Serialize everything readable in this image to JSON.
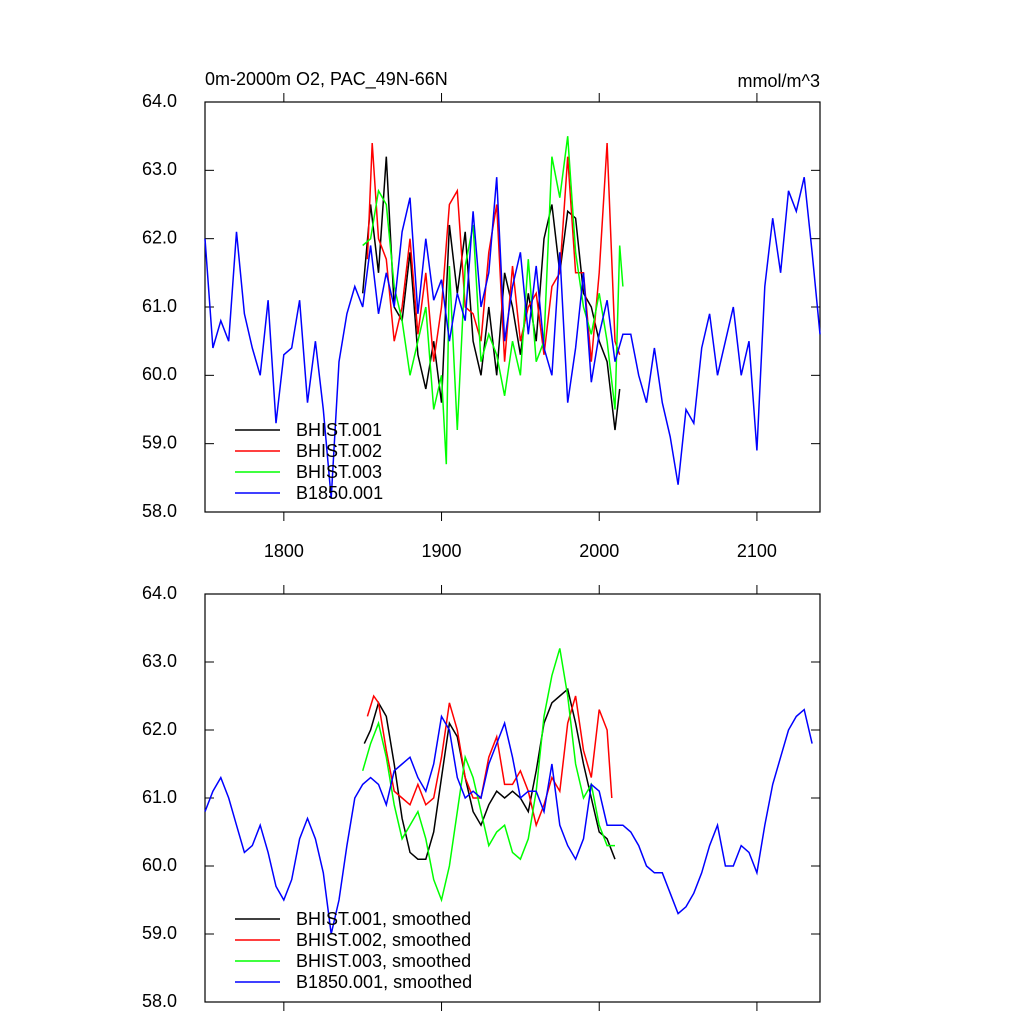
{
  "chart_data": [
    {
      "type": "line",
      "title": "0m-2000m O2, PAC_49N-66N",
      "units": "mmol/m^3",
      "xlim": [
        1750,
        2140
      ],
      "xticks": [
        1800,
        1900,
        2000,
        2100
      ],
      "ylim": [
        58,
        64
      ],
      "yticks": [
        {
          "value": 58,
          "label": "58.0"
        },
        {
          "value": 59,
          "label": "59.0"
        },
        {
          "value": 60,
          "label": "60.0"
        },
        {
          "value": 61,
          "label": "61.0"
        },
        {
          "value": 62,
          "label": "62.0"
        },
        {
          "value": 63,
          "label": "63.0"
        },
        {
          "value": 64,
          "label": "64.0"
        }
      ],
      "legend": "lower left",
      "series": [
        {
          "name": "BHIST.001",
          "color": "#000000",
          "x": [
            1850,
            1855,
            1860,
            1865,
            1870,
            1875,
            1880,
            1885,
            1890,
            1895,
            1900,
            1905,
            1910,
            1915,
            1920,
            1925,
            1930,
            1935,
            1940,
            1945,
            1950,
            1955,
            1960,
            1965,
            1970,
            1975,
            1980,
            1985,
            1990,
            1995,
            2000,
            2005,
            2010,
            2013
          ],
          "values": [
            61.2,
            62.5,
            61.5,
            63.2,
            61.0,
            60.8,
            61.8,
            60.3,
            59.8,
            60.5,
            59.6,
            62.2,
            61.2,
            62.1,
            60.5,
            60.0,
            61.0,
            60.0,
            61.5,
            61.0,
            60.3,
            61.2,
            60.5,
            62.0,
            62.5,
            61.5,
            62.4,
            62.3,
            61.2,
            61.0,
            60.5,
            60.2,
            59.2,
            59.8
          ]
        },
        {
          "name": "BHIST.002",
          "color": "#ff0000",
          "x": [
            1853,
            1856,
            1860,
            1865,
            1870,
            1875,
            1880,
            1885,
            1890,
            1895,
            1900,
            1905,
            1910,
            1915,
            1920,
            1925,
            1930,
            1935,
            1940,
            1945,
            1950,
            1955,
            1960,
            1965,
            1970,
            1975,
            1980,
            1985,
            1990,
            1995,
            2000,
            2005,
            2010,
            2013
          ],
          "values": [
            61.7,
            63.4,
            62.0,
            61.7,
            60.5,
            61.0,
            62.0,
            60.6,
            61.5,
            60.2,
            61.0,
            62.5,
            62.7,
            61.0,
            60.9,
            60.5,
            61.8,
            62.5,
            60.2,
            61.6,
            60.5,
            61.0,
            61.2,
            60.3,
            61.3,
            61.5,
            63.2,
            61.5,
            61.5,
            60.2,
            61.5,
            63.4,
            60.5,
            60.3
          ]
        },
        {
          "name": "BHIST.003",
          "color": "#00ff00",
          "x": [
            1850,
            1855,
            1860,
            1865,
            1870,
            1875,
            1880,
            1885,
            1890,
            1895,
            1900,
            1903,
            1905,
            1910,
            1915,
            1920,
            1925,
            1930,
            1935,
            1940,
            1945,
            1950,
            1955,
            1960,
            1965,
            1970,
            1975,
            1980,
            1985,
            1990,
            1995,
            2000,
            2005,
            2010,
            2013,
            2015
          ],
          "values": [
            61.9,
            62.0,
            62.7,
            62.5,
            61.3,
            60.8,
            60.0,
            60.5,
            61.0,
            59.5,
            60.0,
            58.7,
            61.6,
            59.2,
            61.6,
            62.2,
            60.2,
            60.6,
            60.3,
            59.7,
            60.5,
            60.0,
            61.7,
            60.2,
            60.5,
            63.2,
            62.6,
            63.5,
            61.8,
            61.0,
            60.6,
            61.2,
            60.5,
            59.5,
            61.9,
            61.3
          ]
        },
        {
          "name": "B1850.001",
          "color": "#0000ff",
          "x": [
            1750,
            1755,
            1760,
            1765,
            1770,
            1775,
            1780,
            1785,
            1790,
            1795,
            1800,
            1805,
            1810,
            1815,
            1820,
            1825,
            1830,
            1835,
            1840,
            1845,
            1850,
            1855,
            1860,
            1865,
            1870,
            1875,
            1880,
            1885,
            1890,
            1895,
            1900,
            1905,
            1910,
            1915,
            1920,
            1925,
            1930,
            1935,
            1940,
            1945,
            1950,
            1955,
            1960,
            1965,
            1970,
            1975,
            1980,
            1985,
            1990,
            1995,
            2000,
            2005,
            2010,
            2015,
            2020,
            2025,
            2030,
            2035,
            2040,
            2045,
            2050,
            2055,
            2060,
            2065,
            2070,
            2075,
            2080,
            2085,
            2090,
            2095,
            2100,
            2105,
            2110,
            2115,
            2120,
            2125,
            2130,
            2135,
            2140
          ],
          "values": [
            62.0,
            60.4,
            60.8,
            60.5,
            62.1,
            60.9,
            60.4,
            60.0,
            61.1,
            59.3,
            60.3,
            60.4,
            61.1,
            59.6,
            60.5,
            59.5,
            58.2,
            60.2,
            60.9,
            61.3,
            61.0,
            61.9,
            60.9,
            61.5,
            61.0,
            62.1,
            62.6,
            60.9,
            62.0,
            61.1,
            61.4,
            60.5,
            61.2,
            60.8,
            62.4,
            61.0,
            61.5,
            62.9,
            60.5,
            61.3,
            61.8,
            60.6,
            61.6,
            60.4,
            60.0,
            61.8,
            59.6,
            60.4,
            61.5,
            59.9,
            60.6,
            61.1,
            60.2,
            60.6,
            60.6,
            60.0,
            59.6,
            60.4,
            59.6,
            59.1,
            58.4,
            59.5,
            59.3,
            60.4,
            60.9,
            60.0,
            60.5,
            61.0,
            60.0,
            60.5,
            58.9,
            61.3,
            62.3,
            61.5,
            62.7,
            62.4,
            62.9,
            61.8,
            60.6
          ]
        }
      ]
    },
    {
      "type": "line",
      "xlim": [
        1750,
        2140
      ],
      "xticks": [
        1800,
        1900,
        2000,
        2100
      ],
      "ylim": [
        58,
        64
      ],
      "yticks": [
        {
          "value": 58,
          "label": "58.0"
        },
        {
          "value": 59,
          "label": "59.0"
        },
        {
          "value": 60,
          "label": "60.0"
        },
        {
          "value": 61,
          "label": "61.0"
        },
        {
          "value": 62,
          "label": "62.0"
        },
        {
          "value": 63,
          "label": "63.0"
        },
        {
          "value": 64,
          "label": "64.0"
        }
      ],
      "legend": "lower left",
      "series": [
        {
          "name": "BHIST.001, smoothed",
          "color": "#000000",
          "x": [
            1851,
            1855,
            1860,
            1865,
            1870,
            1875,
            1880,
            1885,
            1890,
            1895,
            1900,
            1905,
            1910,
            1915,
            1920,
            1925,
            1930,
            1935,
            1940,
            1945,
            1950,
            1955,
            1960,
            1965,
            1970,
            1975,
            1980,
            1985,
            1990,
            1995,
            2000,
            2005,
            2010
          ],
          "values": [
            61.8,
            62.0,
            62.4,
            62.2,
            61.5,
            60.7,
            60.2,
            60.1,
            60.1,
            60.5,
            61.3,
            62.1,
            61.9,
            61.3,
            60.8,
            60.6,
            60.9,
            61.1,
            61.0,
            61.1,
            61.0,
            60.8,
            61.4,
            62.1,
            62.4,
            62.5,
            62.6,
            62.1,
            61.5,
            61.0,
            60.5,
            60.4,
            60.1
          ]
        },
        {
          "name": "BHIST.002, smoothed",
          "color": "#ff0000",
          "x": [
            1853,
            1857,
            1860,
            1865,
            1870,
            1875,
            1880,
            1885,
            1890,
            1895,
            1900,
            1905,
            1910,
            1915,
            1920,
            1925,
            1930,
            1935,
            1940,
            1945,
            1950,
            1955,
            1960,
            1965,
            1970,
            1975,
            1980,
            1985,
            1990,
            1995,
            2000,
            2005,
            2008
          ],
          "values": [
            62.2,
            62.5,
            62.4,
            61.7,
            61.1,
            61.0,
            60.9,
            61.2,
            60.9,
            61.0,
            61.6,
            62.4,
            62.0,
            61.3,
            61.0,
            61.0,
            61.6,
            61.9,
            61.2,
            61.2,
            61.4,
            61.1,
            60.6,
            60.9,
            61.3,
            61.1,
            62.1,
            62.5,
            61.7,
            61.3,
            62.3,
            62.0,
            61.0
          ]
        },
        {
          "name": "BHIST.003, smoothed",
          "color": "#00ff00",
          "x": [
            1850,
            1855,
            1860,
            1865,
            1870,
            1875,
            1880,
            1885,
            1890,
            1895,
            1900,
            1905,
            1910,
            1915,
            1920,
            1925,
            1930,
            1935,
            1940,
            1945,
            1950,
            1955,
            1960,
            1965,
            1970,
            1975,
            1980,
            1985,
            1990,
            1995,
            2000,
            2005,
            2010
          ],
          "values": [
            61.4,
            61.8,
            62.1,
            61.6,
            60.9,
            60.4,
            60.6,
            60.8,
            60.4,
            59.8,
            59.5,
            60.0,
            60.8,
            61.6,
            61.3,
            60.8,
            60.3,
            60.5,
            60.6,
            60.2,
            60.1,
            60.4,
            61.1,
            62.2,
            62.8,
            63.2,
            62.5,
            61.5,
            61.0,
            61.2,
            60.6,
            60.3,
            60.3
          ]
        },
        {
          "name": "B1850.001, smoothed",
          "color": "#0000ff",
          "x": [
            1750,
            1755,
            1760,
            1765,
            1770,
            1775,
            1780,
            1785,
            1790,
            1795,
            1800,
            1805,
            1810,
            1815,
            1820,
            1825,
            1830,
            1835,
            1840,
            1845,
            1850,
            1855,
            1860,
            1865,
            1870,
            1875,
            1880,
            1885,
            1890,
            1895,
            1900,
            1905,
            1910,
            1915,
            1920,
            1925,
            1930,
            1935,
            1940,
            1945,
            1950,
            1955,
            1960,
            1965,
            1970,
            1975,
            1980,
            1985,
            1990,
            1995,
            2000,
            2005,
            2010,
            2015,
            2020,
            2025,
            2030,
            2035,
            2040,
            2045,
            2050,
            2055,
            2060,
            2065,
            2070,
            2075,
            2080,
            2085,
            2090,
            2095,
            2100,
            2105,
            2110,
            2115,
            2120,
            2125,
            2130,
            2135
          ],
          "values": [
            60.8,
            61.1,
            61.3,
            61.0,
            60.6,
            60.2,
            60.3,
            60.6,
            60.2,
            59.7,
            59.5,
            59.8,
            60.4,
            60.7,
            60.4,
            59.9,
            59.0,
            59.5,
            60.3,
            61.0,
            61.2,
            61.3,
            61.2,
            60.9,
            61.4,
            61.5,
            61.6,
            61.3,
            61.1,
            61.5,
            62.2,
            62.0,
            61.3,
            61.0,
            61.1,
            61.0,
            61.5,
            61.8,
            62.1,
            61.6,
            61.0,
            61.1,
            61.1,
            60.8,
            61.5,
            60.6,
            60.3,
            60.1,
            60.4,
            61.2,
            61.1,
            60.6,
            60.6,
            60.6,
            60.5,
            60.3,
            60.0,
            59.9,
            59.9,
            59.6,
            59.3,
            59.4,
            59.6,
            59.9,
            60.3,
            60.6,
            60.0,
            60.0,
            60.3,
            60.2,
            59.9,
            60.6,
            61.2,
            61.6,
            62.0,
            62.2,
            62.3,
            61.8
          ]
        }
      ]
    }
  ]
}
